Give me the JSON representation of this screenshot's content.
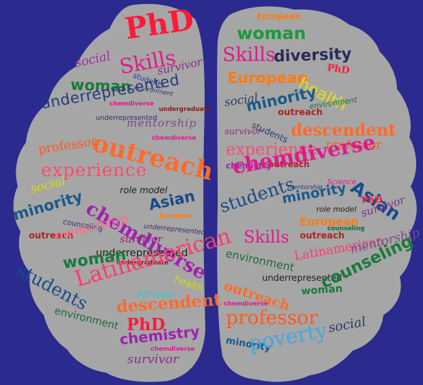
{
  "background_color": "#2a2a8f",
  "lobe_color": "#a6a6a6",
  "left_lobe_words": [
    "PhD",
    "social",
    "Skills",
    "survivor",
    "students",
    "woman",
    "environment",
    "chemdiverse",
    "underrepresented",
    "undergraduate",
    "underrepresented",
    "mentorship",
    "outreach",
    "chemdiverse",
    "professor",
    "experience",
    "social",
    "role model",
    "chemdiverse",
    "Asian",
    "minority",
    "European",
    "counseling",
    "underrepresented",
    "mentorship",
    "outreach",
    "survivor",
    "students",
    "underrepresented",
    "woman",
    "undergraduate",
    "Latinamerican",
    "health",
    "African",
    "descendent",
    "environment",
    "PhD",
    "chemistry",
    "chemdiverse",
    "survivor"
  ],
  "right_lobe_words": [
    "European",
    "woman",
    "Skills",
    "diversity",
    "PhD",
    "European",
    "health",
    "social",
    "minority",
    "outreach",
    "environment",
    "survivor",
    "students",
    "descendent",
    "experience",
    "professor",
    "chemistry",
    "outreach",
    "chemdiverse",
    "Asian",
    "mentorship",
    "Science",
    "students",
    "minority",
    "PhD",
    "role model",
    "survivor",
    "European",
    "Skills",
    "outreach",
    "counseling",
    "environment",
    "Latinamerican",
    "mentorship",
    "underrepresented",
    "outreach",
    "woman",
    "counseling",
    "chemdiverse",
    "professor",
    "social",
    "minority",
    "poverty"
  ]
}
